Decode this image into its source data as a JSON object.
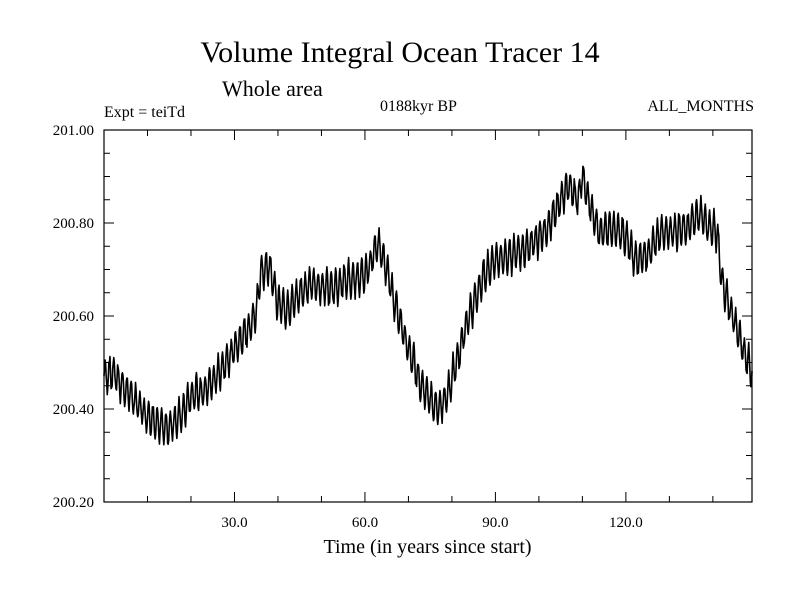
{
  "chart_data": {
    "type": "line",
    "title": "Volume Integral Ocean Tracer 14",
    "subtitle": "Whole area",
    "header_left": "Expt = teiTd",
    "header_center": "0188kyr BP",
    "header_right": "ALL_MONTHS",
    "xlabel": "Time (in years since start)",
    "ylabel": "",
    "xlim": [
      0,
      149
    ],
    "ylim": [
      200.2,
      201.0
    ],
    "xticks": [
      30,
      60,
      90,
      120
    ],
    "xtick_labels": [
      "30.0",
      "60.0",
      "90.0",
      "120.0"
    ],
    "yticks": [
      200.2,
      200.4,
      200.6,
      200.8,
      201.0
    ],
    "ytick_labels": [
      "200.20",
      "200.40",
      "200.60",
      "200.80",
      "201.00"
    ],
    "oscillation_amplitude": 0.035,
    "series": [
      {
        "name": "Volume Integral Ocean Tracer 14",
        "x": [
          0,
          2,
          5,
          8,
          10,
          12,
          15,
          18,
          20,
          23,
          26,
          28,
          30,
          33,
          35,
          36,
          38,
          40,
          42,
          45,
          48,
          50,
          53,
          56,
          58,
          60,
          62,
          63,
          65,
          67,
          70,
          73,
          75,
          77,
          79,
          81,
          83,
          85,
          87,
          90,
          93,
          96,
          99,
          102,
          105,
          107,
          109,
          110,
          112,
          114,
          117,
          120,
          122,
          125,
          128,
          131,
          134,
          137,
          139,
          141,
          142,
          144,
          146,
          148,
          149
        ],
        "values": [
          200.47,
          200.48,
          200.44,
          200.41,
          200.38,
          200.37,
          200.36,
          200.39,
          200.43,
          200.44,
          200.47,
          200.5,
          200.53,
          200.57,
          200.61,
          200.69,
          200.71,
          200.63,
          200.61,
          200.65,
          200.67,
          200.66,
          200.66,
          200.68,
          200.68,
          200.69,
          200.73,
          200.76,
          200.7,
          200.62,
          200.53,
          200.45,
          200.42,
          200.4,
          200.43,
          200.5,
          200.57,
          200.63,
          200.68,
          200.72,
          200.73,
          200.74,
          200.76,
          200.79,
          200.85,
          200.88,
          200.85,
          200.9,
          200.83,
          200.78,
          200.79,
          200.77,
          200.72,
          200.73,
          200.78,
          200.78,
          200.79,
          200.82,
          200.79,
          200.78,
          200.68,
          200.61,
          200.56,
          200.5,
          200.48
        ]
      }
    ]
  }
}
